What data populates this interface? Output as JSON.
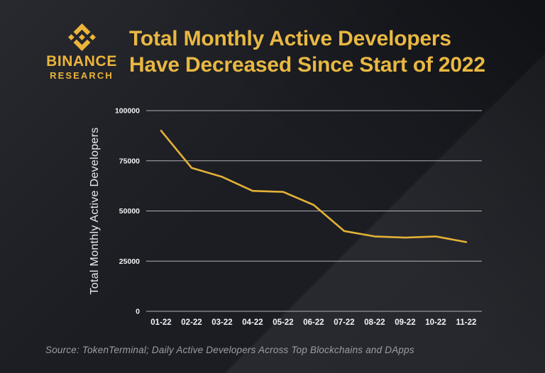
{
  "brand": {
    "name": "BINANCE",
    "sub": "RESEARCH",
    "icon": "binance-diamond-logo",
    "color": "#ecb43b"
  },
  "title": {
    "line1": "Total Monthly Active Developers",
    "line2": "Have Decreased Since Start of 2022",
    "color": "#e9b842"
  },
  "chart_data": {
    "type": "line",
    "title": "",
    "xlabel": "",
    "ylabel": "Total Monthly Active Developers",
    "categories": [
      "01-22",
      "02-22",
      "03-22",
      "04-22",
      "05-22",
      "06-22",
      "07-22",
      "08-22",
      "09-22",
      "10-22",
      "11-22"
    ],
    "values": [
      90000,
      71500,
      67000,
      60000,
      59500,
      53000,
      40000,
      37300,
      36700,
      37300,
      34500
    ],
    "series_name": "Total Monthly Active Developers",
    "ylim": [
      0,
      100000
    ],
    "yticks": [
      0,
      25000,
      50000,
      75000,
      100000
    ],
    "grid": "horizontal",
    "legend": "none",
    "line_color": "#e4b136",
    "grid_color": "#c9cbd1",
    "tick_color": "#f2f3f5",
    "ylabel_color": "#e9eaec"
  },
  "source": "Source: TokenTerminal; Daily Active Developers Across Top Blockchains and DApps"
}
